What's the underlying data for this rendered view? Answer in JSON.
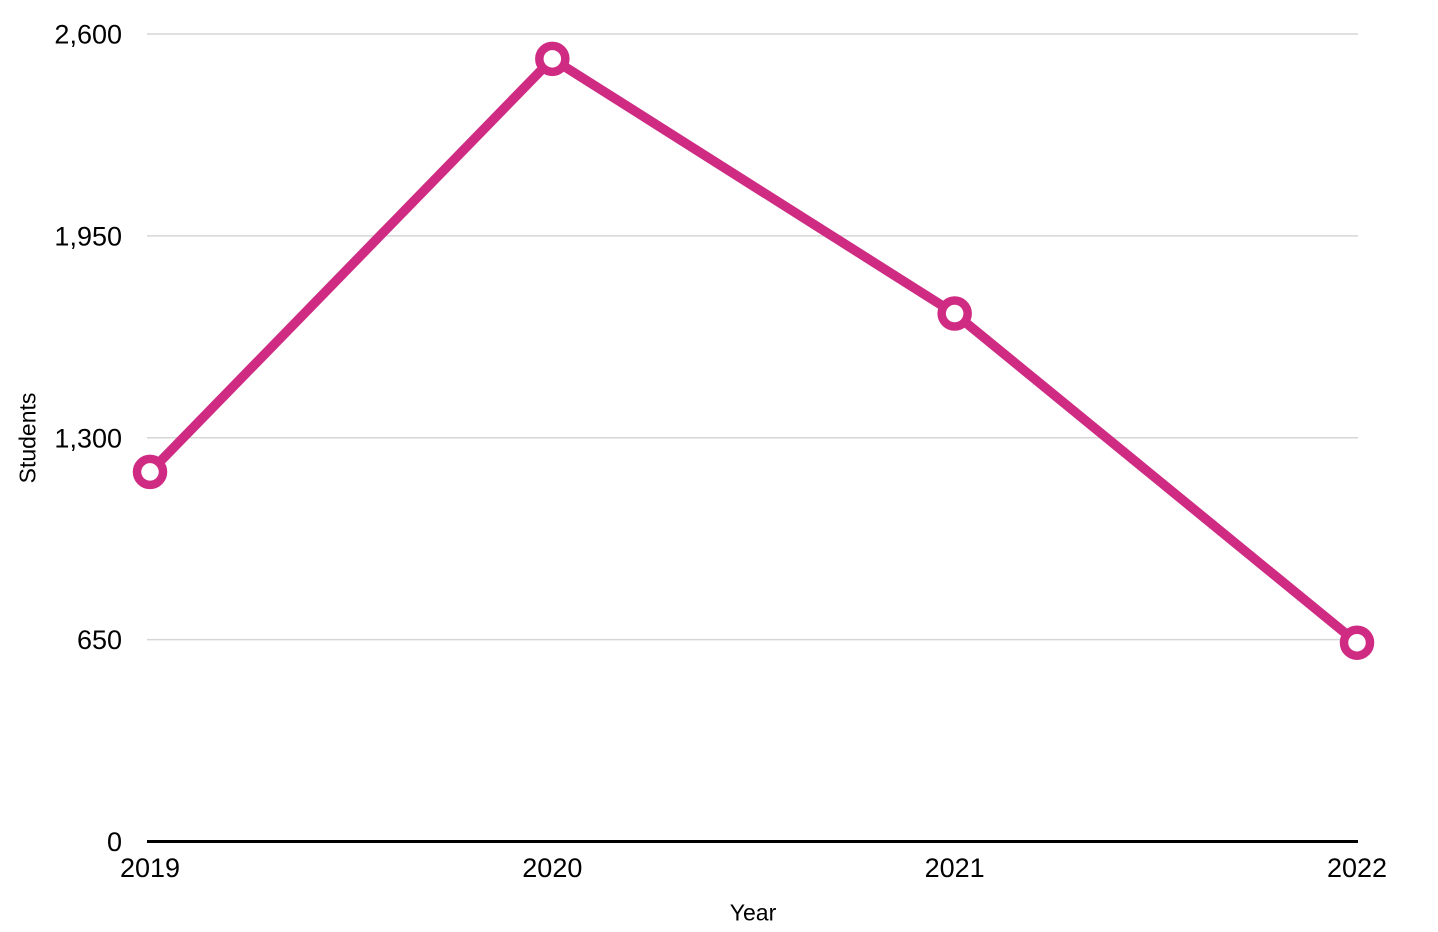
{
  "chart_data": {
    "type": "line",
    "title": "",
    "xlabel": "Year",
    "ylabel": "Students",
    "categories": [
      "2019",
      "2020",
      "2021",
      "2022"
    ],
    "series": [
      {
        "name": "Students",
        "values": [
          1190,
          2520,
          1700,
          640
        ]
      }
    ],
    "ylim": [
      0,
      2600
    ],
    "yticks": [
      0,
      650,
      1300,
      1950,
      2600
    ],
    "ytick_labels": [
      "0",
      "650",
      "1,300",
      "1,950",
      "2,600"
    ],
    "grid": true,
    "legend": false,
    "marker_style": "open-circle",
    "colors": {
      "line": "#cf2b83",
      "marker_fill": "#ffffff",
      "gridline": "#d6d6d6",
      "axis_line": "#000000",
      "text": "#000000",
      "background": "#ffffff"
    }
  }
}
